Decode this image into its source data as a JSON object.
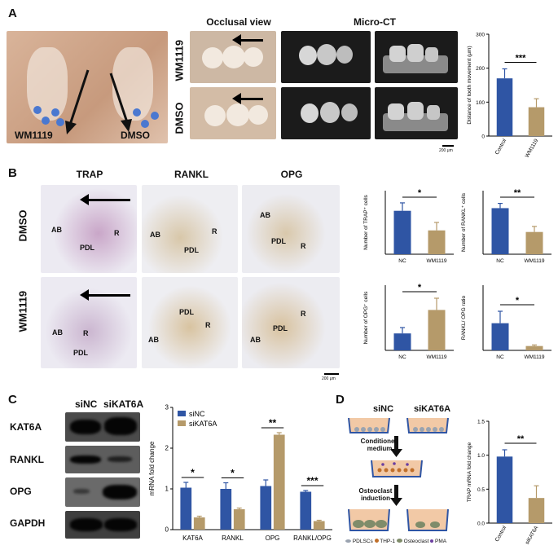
{
  "panels": {
    "a": "A",
    "b": "B",
    "c": "C",
    "d": "D"
  },
  "panel_a": {
    "occlusal_view": "Occlusal view",
    "micro_ct": "Micro-CT",
    "group_wm": "WM1119",
    "group_dmso": "DMSO",
    "photo_left": "WM1119",
    "photo_right": "DMSO",
    "scale": "200 μm"
  },
  "panel_b": {
    "cols": [
      "TRAP",
      "RANKL",
      "OPG"
    ],
    "rows": [
      "DMSO",
      "WM1119"
    ],
    "tissue": {
      "ab": "AB",
      "pdl": "PDL",
      "r": "R"
    },
    "scale": "200 μm"
  },
  "panel_c": {
    "si_nc": "siNC",
    "si_kat6a": "siKAT6A",
    "blot_rows": [
      "KAT6A",
      "RANKL",
      "OPG",
      "GAPDH"
    ]
  },
  "panel_d": {
    "si_nc": "siNC",
    "si_kat6a": "siKAT6A",
    "conditioned": "Conditioned medium",
    "osteoclast": "Osteoclast induction",
    "legend": [
      "PDLSCs",
      "THP-1",
      "Osteoclast",
      "PMA"
    ]
  },
  "colors": {
    "blue": "#2f55a4",
    "tan": "#b59a6a"
  },
  "chart_data": [
    {
      "id": "a_distance",
      "type": "bar",
      "categories": [
        "Control",
        "WM1119"
      ],
      "values": [
        170,
        85
      ],
      "errors": [
        28,
        25
      ],
      "ylabel": "Distance of tooth movement (μm)",
      "ylim": [
        0,
        300
      ],
      "yticks": [
        0,
        100,
        200,
        300
      ],
      "sig": "***",
      "colors": [
        "#2f55a4",
        "#b59a6a"
      ]
    },
    {
      "id": "b_trap",
      "type": "bar",
      "categories": [
        "NC",
        "WM1119"
      ],
      "values": [
        8.2,
        4.5
      ],
      "errors": [
        1.5,
        1.5
      ],
      "ylabel": "Number of TRAP⁺ cells",
      "ylim": [
        0,
        12
      ],
      "sig": "*",
      "colors": [
        "#2f55a4",
        "#b59a6a"
      ]
    },
    {
      "id": "b_rankl",
      "type": "bar",
      "categories": [
        "NC",
        "WM1119"
      ],
      "values": [
        29,
        14
      ],
      "errors": [
        3,
        3.5
      ],
      "ylabel": "Number of RANKL⁺ cells",
      "ylim": [
        0,
        40
      ],
      "sig": "**",
      "colors": [
        "#2f55a4",
        "#b59a6a"
      ]
    },
    {
      "id": "b_opg",
      "type": "bar",
      "categories": [
        "NC",
        "WM1119"
      ],
      "values": [
        26,
        62
      ],
      "errors": [
        9,
        18
      ],
      "ylabel": "Number of OPG⁺ cells",
      "ylim": [
        0,
        100
      ],
      "sig": "*",
      "colors": [
        "#2f55a4",
        "#b59a6a"
      ]
    },
    {
      "id": "b_ratio",
      "type": "bar",
      "categories": [
        "NC",
        "WM1119"
      ],
      "values": [
        1.25,
        0.2
      ],
      "errors": [
        0.55,
        0.05
      ],
      "ylabel": "RANKL/ OPG ratio",
      "ylim": [
        0,
        3
      ],
      "sig": "*",
      "colors": [
        "#2f55a4",
        "#b59a6a"
      ]
    },
    {
      "id": "c_mrna",
      "type": "bar",
      "categories": [
        "KAT6A",
        "RANKL",
        "OPG",
        "RANKL/OPG"
      ],
      "series": [
        {
          "name": "siNC",
          "values": [
            1.03,
            1.0,
            1.07,
            0.93
          ],
          "errors": [
            0.13,
            0.15,
            0.15,
            0.03
          ]
        },
        {
          "name": "siKAT6A",
          "values": [
            0.3,
            0.5,
            2.33,
            0.21
          ],
          "errors": [
            0.03,
            0.03,
            0.05,
            0.02
          ]
        }
      ],
      "ylabel": "mRNA fold change",
      "ylim": [
        0,
        3
      ],
      "yticks": [
        0,
        1,
        2,
        3
      ],
      "sigs": [
        "*",
        "*",
        "**",
        "***"
      ],
      "legend": "top-left",
      "colors": [
        "#2f55a4",
        "#b59a6a"
      ]
    },
    {
      "id": "d_trap",
      "type": "bar",
      "categories": [
        "Control",
        "siKAT6A"
      ],
      "values": [
        0.98,
        0.37
      ],
      "errors": [
        0.1,
        0.18
      ],
      "ylabel": "TRAP mRNA fold change",
      "ylim": [
        0,
        1.5
      ],
      "yticks": [
        0,
        0.5,
        1.0,
        1.5
      ],
      "sig": "**",
      "colors": [
        "#2f55a4",
        "#b59a6a"
      ]
    }
  ]
}
